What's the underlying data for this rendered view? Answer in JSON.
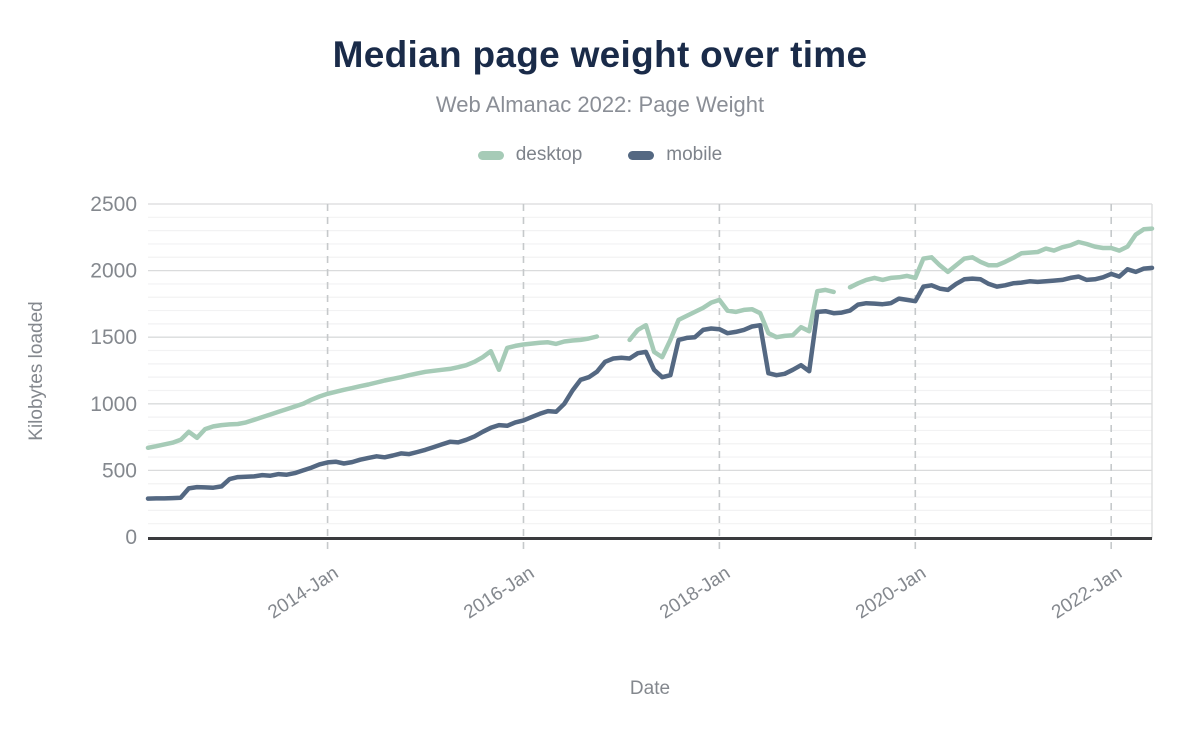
{
  "header": {
    "title": "Median page weight over time",
    "subtitle": "Web Almanac 2022: Page Weight"
  },
  "colors": {
    "title_text": "#1a2b49",
    "muted_text": "#84888e",
    "desktop_line": "#a6cbb7",
    "mobile_line": "#546882",
    "grid_minor": "#f2f2f3",
    "grid_major": "#dadbdc",
    "grid_dashed": "#c6c9cb",
    "axis_line": "#3a3b3e"
  },
  "chart_data": {
    "type": "line",
    "title": "Median page weight over time",
    "subtitle": "Web Almanac 2022: Page Weight",
    "xlabel": "Date",
    "ylabel": "Kilobytes loaded",
    "ylim": [
      0,
      2500
    ],
    "yticks": [
      0,
      500,
      1000,
      1500,
      2000,
      2500
    ],
    "ytick_minor_step": 100,
    "legend_position": "top",
    "grid": {
      "horizontal_minor": true,
      "horizontal_major": true,
      "vertical_dashed_at_ticks": true
    },
    "xticks": [
      {
        "month": "2014-01",
        "label": "2014-Jan"
      },
      {
        "month": "2016-01",
        "label": "2016-Jan"
      },
      {
        "month": "2018-01",
        "label": "2018-Jan"
      },
      {
        "month": "2020-01",
        "label": "2020-Jan"
      },
      {
        "month": "2022-01",
        "label": "2022-Jan"
      }
    ],
    "x": [
      "2012-03",
      "2012-04",
      "2012-05",
      "2012-06",
      "2012-07",
      "2012-08",
      "2012-09",
      "2012-10",
      "2012-11",
      "2012-12",
      "2013-01",
      "2013-02",
      "2013-03",
      "2013-04",
      "2013-05",
      "2013-06",
      "2013-07",
      "2013-08",
      "2013-09",
      "2013-10",
      "2013-11",
      "2013-12",
      "2014-01",
      "2014-02",
      "2014-03",
      "2014-04",
      "2014-05",
      "2014-06",
      "2014-07",
      "2014-08",
      "2014-09",
      "2014-10",
      "2014-11",
      "2014-12",
      "2015-01",
      "2015-02",
      "2015-03",
      "2015-04",
      "2015-05",
      "2015-06",
      "2015-07",
      "2015-08",
      "2015-09",
      "2015-10",
      "2015-11",
      "2015-12",
      "2016-01",
      "2016-02",
      "2016-03",
      "2016-04",
      "2016-05",
      "2016-06",
      "2016-07",
      "2016-08",
      "2016-09",
      "2016-10",
      "2016-11",
      "2016-12",
      "2017-01",
      "2017-02",
      "2017-03",
      "2017-04",
      "2017-05",
      "2017-06",
      "2017-07",
      "2017-08",
      "2017-09",
      "2017-10",
      "2017-11",
      "2017-12",
      "2018-01",
      "2018-02",
      "2018-03",
      "2018-04",
      "2018-05",
      "2018-06",
      "2018-07",
      "2018-08",
      "2018-09",
      "2018-10",
      "2018-11",
      "2018-12",
      "2019-01",
      "2019-02",
      "2019-03",
      "2019-04",
      "2019-05",
      "2019-06",
      "2019-07",
      "2019-08",
      "2019-09",
      "2019-10",
      "2019-11",
      "2019-12",
      "2020-01",
      "2020-02",
      "2020-03",
      "2020-04",
      "2020-05",
      "2020-06",
      "2020-07",
      "2020-08",
      "2020-09",
      "2020-10",
      "2020-11",
      "2020-12",
      "2021-01",
      "2021-02",
      "2021-03",
      "2021-04",
      "2021-05",
      "2021-06",
      "2021-07",
      "2021-08",
      "2021-09",
      "2021-10",
      "2021-11",
      "2021-12",
      "2022-01",
      "2022-02",
      "2022-03",
      "2022-04",
      "2022-05",
      "2022-06"
    ],
    "series": [
      {
        "name": "desktop",
        "color": "#a6cbb7",
        "values": [
          670,
          682,
          695,
          708,
          730,
          790,
          745,
          810,
          830,
          840,
          845,
          848,
          860,
          880,
          900,
          920,
          940,
          960,
          980,
          1000,
          1030,
          1055,
          1075,
          1090,
          1105,
          1118,
          1132,
          1145,
          1160,
          1175,
          1188,
          1200,
          1215,
          1228,
          1240,
          1248,
          1255,
          1262,
          1275,
          1290,
          1315,
          1350,
          1395,
          1255,
          1420,
          1435,
          1445,
          1452,
          1458,
          1462,
          1450,
          1468,
          1475,
          1480,
          1490,
          1505,
          null,
          null,
          null,
          1480,
          1555,
          1590,
          1390,
          1350,
          1480,
          1630,
          1660,
          1690,
          1720,
          1760,
          1780,
          1700,
          1690,
          1705,
          1710,
          1680,
          1530,
          1500,
          1510,
          1515,
          1575,
          1545,
          1845,
          1855,
          1840,
          null,
          1875,
          1905,
          1930,
          1945,
          1930,
          1945,
          1950,
          1960,
          1945,
          2090,
          2100,
          2040,
          1990,
          2040,
          2090,
          2100,
          2065,
          2040,
          2040,
          2065,
          2095,
          2130,
          2135,
          2140,
          2165,
          2150,
          2175,
          2190,
          2215,
          2200,
          2180,
          2170,
          2170,
          2150,
          2180,
          2270,
          2310,
          2315
        ]
      },
      {
        "name": "mobile",
        "color": "#546882",
        "values": [
          288,
          290,
          290,
          292,
          295,
          365,
          375,
          372,
          370,
          380,
          435,
          450,
          452,
          455,
          465,
          460,
          472,
          468,
          480,
          500,
          520,
          545,
          560,
          565,
          552,
          562,
          580,
          594,
          606,
          598,
          612,
          628,
          622,
          638,
          655,
          675,
          695,
          715,
          710,
          730,
          755,
          790,
          820,
          840,
          835,
          860,
          875,
          900,
          925,
          945,
          940,
          1000,
          1100,
          1180,
          1200,
          1240,
          1315,
          1340,
          1345,
          1340,
          1380,
          1390,
          1255,
          1200,
          1215,
          1480,
          1495,
          1500,
          1555,
          1565,
          1560,
          1530,
          1540,
          1555,
          1580,
          1590,
          1230,
          1215,
          1225,
          1255,
          1290,
          1245,
          1690,
          1695,
          1680,
          1685,
          1700,
          1745,
          1755,
          1752,
          1748,
          1755,
          1790,
          1780,
          1770,
          1880,
          1890,
          1865,
          1855,
          1900,
          1935,
          1940,
          1935,
          1900,
          1880,
          1890,
          1905,
          1910,
          1920,
          1915,
          1920,
          1925,
          1930,
          1945,
          1955,
          1930,
          1935,
          1950,
          1975,
          1955,
          2010,
          1990,
          2015,
          2020
        ]
      }
    ]
  }
}
